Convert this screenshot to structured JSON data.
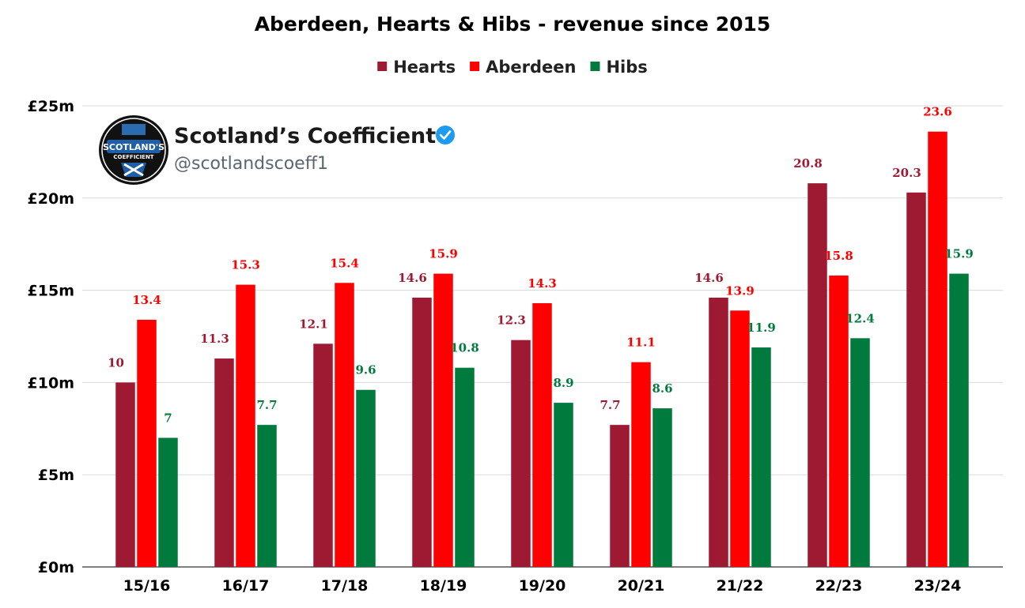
{
  "chart_data": {
    "type": "bar",
    "title": "Aberdeen, Hearts & Hibs - revenue since 2015",
    "categories": [
      "15/16",
      "16/17",
      "17/18",
      "18/19",
      "19/20",
      "20/21",
      "21/22",
      "22/23",
      "23/24"
    ],
    "series": [
      {
        "name": "Hearts",
        "color": "#9e1a32",
        "values": [
          10,
          11.3,
          12.1,
          14.6,
          12.3,
          7.7,
          14.6,
          20.8,
          20.3
        ]
      },
      {
        "name": "Aberdeen",
        "color": "#ff0000",
        "values": [
          13.4,
          15.3,
          15.4,
          15.9,
          14.3,
          11.1,
          13.9,
          15.8,
          23.6
        ]
      },
      {
        "name": "Hibs",
        "color": "#007a3d",
        "values": [
          7,
          7.7,
          9.6,
          10.8,
          8.9,
          8.6,
          11.9,
          12.4,
          15.9
        ]
      }
    ],
    "ylim": [
      0,
      25
    ],
    "yticks": [
      0,
      5,
      10,
      15,
      20,
      25
    ],
    "ytick_labels": [
      "£0m",
      "£5m",
      "£10m",
      "£15m",
      "£20m",
      "£25m"
    ],
    "grid": true,
    "legend_position": "top-center"
  },
  "brand": {
    "name": "Scotland’s Coefficient",
    "handle": "@scotlandscoeff1",
    "logo_line1": "SCOTLAND'S",
    "logo_line2": "COEFFICIENT",
    "verified_icon": "verified-badge-icon",
    "verified_color": "#1d9bf0"
  }
}
